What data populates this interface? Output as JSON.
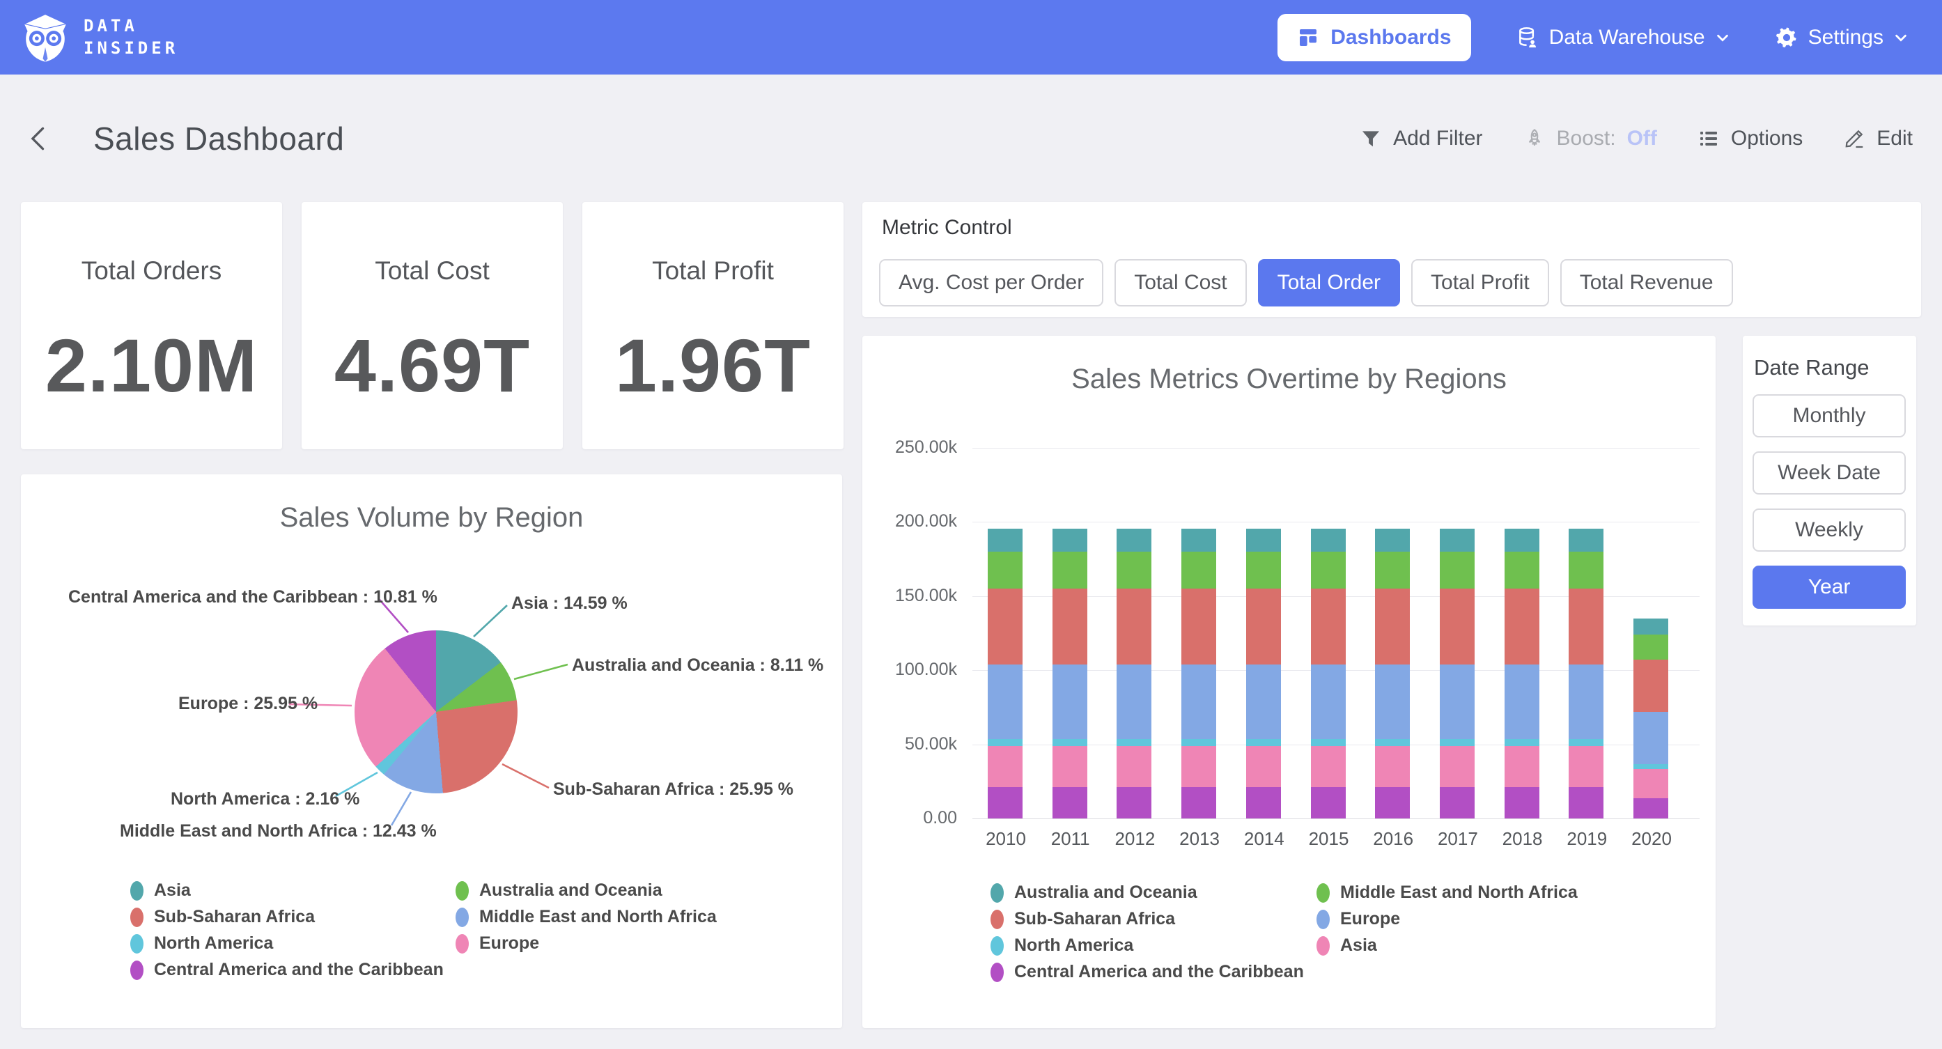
{
  "nav": {
    "brand_line1": "DATA",
    "brand_line2": "INSIDER",
    "dashboards": "Dashboards",
    "data_warehouse": "Data Warehouse",
    "settings": "Settings"
  },
  "header": {
    "title": "Sales Dashboard",
    "add_filter": "Add Filter",
    "boost_label": "Boost:",
    "boost_state": "Off",
    "options": "Options",
    "edit": "Edit"
  },
  "kpis": [
    {
      "label": "Total Orders",
      "value": "2.10M"
    },
    {
      "label": "Total Cost",
      "value": "4.69T"
    },
    {
      "label": "Total Profit",
      "value": "1.96T"
    }
  ],
  "metric_control": {
    "title": "Metric Control",
    "options": [
      {
        "label": "Avg. Cost per Order",
        "selected": false
      },
      {
        "label": "Total Cost",
        "selected": false
      },
      {
        "label": "Total Order",
        "selected": true
      },
      {
        "label": "Total Profit",
        "selected": false
      },
      {
        "label": "Total Revenue",
        "selected": false
      }
    ]
  },
  "date_range": {
    "title": "Date Range",
    "options": [
      {
        "label": "Monthly",
        "selected": false
      },
      {
        "label": "Week Date",
        "selected": false
      },
      {
        "label": "Weekly",
        "selected": false
      },
      {
        "label": "Year",
        "selected": true
      }
    ]
  },
  "colors": {
    "nav_bg": "#5C79EF",
    "accent": "#5B78EE",
    "page_bg": "#F0F0F4",
    "boost_off": "#B9C3F7",
    "regions": {
      "Asia_pie": "#52A7AB",
      "Australia and Oceania": "#52A7AB",
      "Middle East and North Africa": "#6FC04F",
      "Sub-Saharan Africa": "#D9706B",
      "Europe": "#83A8E4",
      "North America": "#60C6DC",
      "Asia": "#EF85B5",
      "Central America and the Caribbean": "#B24FC4"
    }
  },
  "chart_data": [
    {
      "type": "pie",
      "title": "Sales Volume by Region",
      "slices": [
        {
          "label": "Asia",
          "value": 14.59,
          "color": "#52A7AB",
          "callout": "Asia : 14.59 %"
        },
        {
          "label": "Australia and Oceania",
          "value": 8.11,
          "color": "#6FC04F",
          "callout": "Australia and Oceania : 8.11 %"
        },
        {
          "label": "Sub-Saharan Africa",
          "value": 25.95,
          "color": "#D9706B",
          "callout": "Sub-Saharan Africa : 25.95 %"
        },
        {
          "label": "Middle East and North Africa",
          "value": 12.43,
          "color": "#83A8E4",
          "callout": "Middle East and North Africa : 12.43 %"
        },
        {
          "label": "North America",
          "value": 2.16,
          "color": "#60C6DC",
          "callout": "North America : 2.16 %"
        },
        {
          "label": "Europe",
          "value": 25.95,
          "color": "#EF85B5",
          "callout": "Europe : 25.95 %"
        },
        {
          "label": "Central America and the Caribbean",
          "value": 10.81,
          "color": "#B24FC4",
          "callout": "Central America and the Caribbean : 10.81 %"
        }
      ],
      "legend_col1": [
        {
          "label": "Asia",
          "color": "#52A7AB"
        },
        {
          "label": "Sub-Saharan Africa",
          "color": "#D9706B"
        },
        {
          "label": "North America",
          "color": "#60C6DC"
        },
        {
          "label": "Central America and the Caribbean",
          "color": "#B24FC4"
        }
      ],
      "legend_col2": [
        {
          "label": "Australia and Oceania",
          "color": "#6FC04F"
        },
        {
          "label": "Middle East and North Africa",
          "color": "#83A8E4"
        },
        {
          "label": "Europe",
          "color": "#EF85B5"
        }
      ]
    },
    {
      "type": "bar",
      "title": "Sales Metrics Overtime by Regions",
      "categories": [
        "2010",
        "2011",
        "2012",
        "2013",
        "2014",
        "2015",
        "2016",
        "2017",
        "2018",
        "2019",
        "2020"
      ],
      "y_ticks": [
        "250.00k",
        "200.00k",
        "150.00k",
        "100.00k",
        "50.00k",
        "0.00"
      ],
      "ylim": [
        0,
        250000
      ],
      "stack_order_note": "series listed bottom-to-top of each stacked bar",
      "series": [
        {
          "name": "Central America and the Caribbean",
          "color": "#B24FC4",
          "values": [
            21000,
            21000,
            21000,
            21000,
            21000,
            21000,
            21000,
            21000,
            21000,
            21000,
            13500
          ]
        },
        {
          "name": "Asia",
          "color": "#EF85B5",
          "values": [
            28000,
            28000,
            28000,
            28000,
            28000,
            28000,
            28000,
            28000,
            28000,
            28000,
            20000
          ]
        },
        {
          "name": "North America",
          "color": "#60C6DC",
          "values": [
            4500,
            4500,
            4500,
            4500,
            4500,
            4500,
            4500,
            4500,
            4500,
            4500,
            3000
          ]
        },
        {
          "name": "Europe",
          "color": "#83A8E4",
          "values": [
            50500,
            50500,
            50500,
            50500,
            50500,
            50500,
            50500,
            50500,
            50500,
            50500,
            35500
          ]
        },
        {
          "name": "Sub-Saharan Africa",
          "color": "#D9706B",
          "values": [
            51000,
            51000,
            51000,
            51000,
            51000,
            51000,
            51000,
            51000,
            51000,
            51000,
            35000
          ]
        },
        {
          "name": "Middle East and North Africa",
          "color": "#6FC04F",
          "values": [
            25000,
            25000,
            25000,
            25000,
            25000,
            25000,
            25000,
            25000,
            25000,
            25000,
            17000
          ]
        },
        {
          "name": "Australia and Oceania",
          "color": "#52A7AB",
          "values": [
            15500,
            15500,
            15500,
            15500,
            15500,
            15500,
            15500,
            15500,
            15500,
            15500,
            11000
          ]
        }
      ],
      "legend_col1": [
        {
          "label": "Australia and Oceania",
          "color": "#52A7AB"
        },
        {
          "label": "Sub-Saharan Africa",
          "color": "#D9706B"
        },
        {
          "label": "North America",
          "color": "#60C6DC"
        },
        {
          "label": "Central America and the Caribbean",
          "color": "#B24FC4"
        }
      ],
      "legend_col2": [
        {
          "label": "Middle East and North Africa",
          "color": "#6FC04F"
        },
        {
          "label": "Europe",
          "color": "#83A8E4"
        },
        {
          "label": "Asia",
          "color": "#EF85B5"
        }
      ]
    }
  ]
}
